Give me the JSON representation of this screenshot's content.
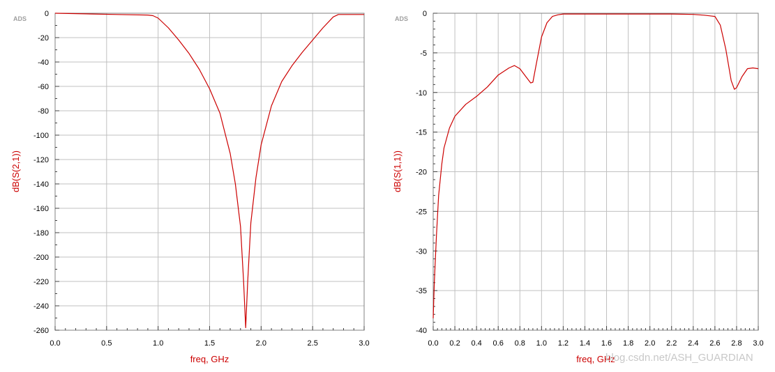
{
  "charts": [
    {
      "type": "line",
      "brand": "ADS",
      "xlabel": "freq, GHz",
      "ylabel": "dB(S(2,1))",
      "xlim": [
        0.0,
        3.0
      ],
      "ylim": [
        -260,
        0
      ],
      "xticks": [
        "0.0",
        "0.5",
        "1.0",
        "1.5",
        "2.0",
        "2.5",
        "3.0"
      ],
      "yticks": [
        "0",
        "-20",
        "-40",
        "-60",
        "-80",
        "-100",
        "-120",
        "-140",
        "-160",
        "-180",
        "-200",
        "-220",
        "-240",
        "-260"
      ],
      "grid": true,
      "line_color": "#cc0000",
      "series": [
        {
          "x": [
            0.0,
            0.3,
            0.6,
            0.9,
            0.95,
            1.0,
            1.1,
            1.2,
            1.3,
            1.4,
            1.5,
            1.6,
            1.7,
            1.75,
            1.8,
            1.83,
            1.85,
            1.87,
            1.9,
            1.95,
            2.0,
            2.1,
            2.2,
            2.3,
            2.4,
            2.5,
            2.6,
            2.7,
            2.75,
            3.0
          ],
          "y": [
            0,
            -0.5,
            -1,
            -1.5,
            -2,
            -4,
            -12,
            -22,
            -33,
            -46,
            -62,
            -82,
            -115,
            -140,
            -175,
            -220,
            -258,
            -220,
            -172,
            -135,
            -108,
            -76,
            -56,
            -43,
            -32,
            -22,
            -12,
            -3,
            -1,
            -1
          ]
        }
      ]
    },
    {
      "type": "line",
      "brand": "ADS",
      "xlabel": "freq, GHz",
      "ylabel": "dB(S(1,1))",
      "xlim": [
        0.0,
        3.0
      ],
      "ylim": [
        -40,
        0
      ],
      "xticks": [
        "0.0",
        "0.2",
        "0.4",
        "0.6",
        "0.8",
        "1.0",
        "1.2",
        "1.4",
        "1.6",
        "1.8",
        "2.0",
        "2.2",
        "2.4",
        "2.6",
        "2.8",
        "3.0"
      ],
      "yticks": [
        "0",
        "-5",
        "-10",
        "-15",
        "-20",
        "-25",
        "-30",
        "-35",
        "-40"
      ],
      "grid": true,
      "line_color": "#cc0000",
      "series": [
        {
          "x": [
            0.0,
            0.01,
            0.03,
            0.05,
            0.08,
            0.1,
            0.15,
            0.2,
            0.3,
            0.4,
            0.5,
            0.6,
            0.7,
            0.75,
            0.8,
            0.85,
            0.9,
            0.92,
            0.95,
            1.0,
            1.05,
            1.1,
            1.15,
            1.2,
            1.4,
            1.6,
            1.8,
            2.0,
            2.2,
            2.4,
            2.5,
            2.6,
            2.65,
            2.7,
            2.75,
            2.78,
            2.8,
            2.85,
            2.9,
            2.95,
            3.0
          ],
          "y": [
            -38.5,
            -34,
            -28,
            -23,
            -19,
            -17,
            -14.5,
            -13,
            -11.5,
            -10.5,
            -9.3,
            -7.8,
            -6.9,
            -6.6,
            -7.0,
            -7.9,
            -8.8,
            -8.7,
            -6.5,
            -3.0,
            -1.2,
            -0.4,
            -0.2,
            -0.1,
            -0.1,
            -0.1,
            -0.1,
            -0.1,
            -0.1,
            -0.15,
            -0.25,
            -0.4,
            -1.5,
            -4.5,
            -8.5,
            -9.6,
            -9.4,
            -8.0,
            -7.0,
            -6.9,
            -7.0
          ]
        }
      ]
    }
  ],
  "watermark": "blog.csdn.net/ASH_GUARDIAN"
}
